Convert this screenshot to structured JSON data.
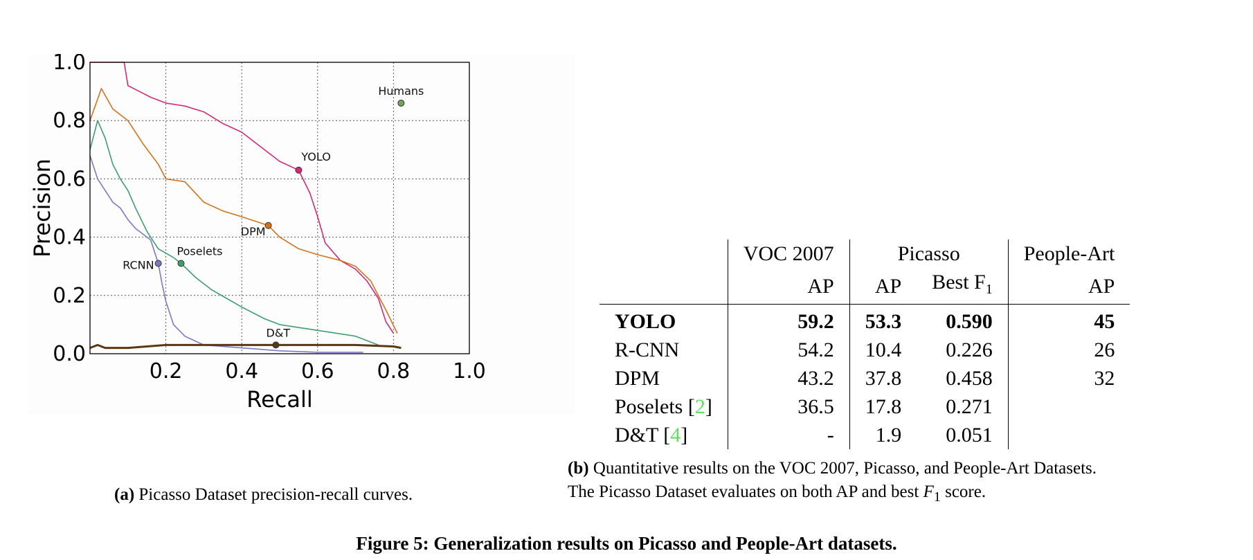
{
  "chart_data": {
    "type": "line",
    "title": "",
    "xlabel": "Recall",
    "ylabel": "Precision",
    "xlim": [
      0.0,
      1.0
    ],
    "ylim": [
      0.0,
      1.0
    ],
    "x_ticks": [
      "0.2",
      "0.4",
      "0.6",
      "0.8",
      "1.0"
    ],
    "y_ticks": [
      "0.0",
      "0.2",
      "0.4",
      "0.6",
      "0.8",
      "1.0"
    ],
    "grid": true,
    "series": [
      {
        "name": "YOLO",
        "color": "#d6287a",
        "points": [
          [
            0.0,
            1.0
          ],
          [
            0.05,
            1.0
          ],
          [
            0.09,
            1.0
          ],
          [
            0.1,
            0.92
          ],
          [
            0.13,
            0.9
          ],
          [
            0.16,
            0.88
          ],
          [
            0.2,
            0.86
          ],
          [
            0.25,
            0.85
          ],
          [
            0.3,
            0.83
          ],
          [
            0.35,
            0.79
          ],
          [
            0.4,
            0.76
          ],
          [
            0.45,
            0.71
          ],
          [
            0.5,
            0.66
          ],
          [
            0.55,
            0.63
          ],
          [
            0.58,
            0.55
          ],
          [
            0.6,
            0.47
          ],
          [
            0.62,
            0.38
          ],
          [
            0.66,
            0.32
          ],
          [
            0.7,
            0.29
          ],
          [
            0.73,
            0.25
          ],
          [
            0.76,
            0.19
          ],
          [
            0.78,
            0.11
          ],
          [
            0.8,
            0.07
          ]
        ],
        "marker": [
          0.55,
          0.63
        ]
      },
      {
        "name": "DPM",
        "color": "#d2731c",
        "points": [
          [
            0.0,
            0.8
          ],
          [
            0.03,
            0.91
          ],
          [
            0.06,
            0.84
          ],
          [
            0.1,
            0.8
          ],
          [
            0.14,
            0.72
          ],
          [
            0.18,
            0.65
          ],
          [
            0.2,
            0.6
          ],
          [
            0.25,
            0.59
          ],
          [
            0.3,
            0.52
          ],
          [
            0.35,
            0.49
          ],
          [
            0.4,
            0.47
          ],
          [
            0.47,
            0.44
          ],
          [
            0.5,
            0.4
          ],
          [
            0.55,
            0.36
          ],
          [
            0.6,
            0.34
          ],
          [
            0.66,
            0.32
          ],
          [
            0.7,
            0.3
          ],
          [
            0.74,
            0.25
          ],
          [
            0.78,
            0.15
          ],
          [
            0.81,
            0.07
          ]
        ],
        "marker": [
          0.47,
          0.44
        ]
      },
      {
        "name": "Poselets",
        "color": "#3f9e6d",
        "points": [
          [
            0.0,
            0.7
          ],
          [
            0.02,
            0.8
          ],
          [
            0.04,
            0.74
          ],
          [
            0.06,
            0.65
          ],
          [
            0.08,
            0.6
          ],
          [
            0.1,
            0.56
          ],
          [
            0.12,
            0.5
          ],
          [
            0.15,
            0.42
          ],
          [
            0.18,
            0.36
          ],
          [
            0.22,
            0.33
          ],
          [
            0.24,
            0.31
          ],
          [
            0.28,
            0.26
          ],
          [
            0.32,
            0.22
          ],
          [
            0.36,
            0.19
          ],
          [
            0.4,
            0.16
          ],
          [
            0.46,
            0.12
          ],
          [
            0.5,
            0.1
          ],
          [
            0.6,
            0.08
          ],
          [
            0.7,
            0.06
          ],
          [
            0.76,
            0.03
          ]
        ],
        "marker": [
          0.24,
          0.31
        ]
      },
      {
        "name": "RCNN",
        "color": "#7b78c8",
        "points": [
          [
            0.0,
            0.68
          ],
          [
            0.02,
            0.6
          ],
          [
            0.04,
            0.56
          ],
          [
            0.06,
            0.52
          ],
          [
            0.08,
            0.5
          ],
          [
            0.1,
            0.46
          ],
          [
            0.12,
            0.43
          ],
          [
            0.14,
            0.41
          ],
          [
            0.16,
            0.39
          ],
          [
            0.18,
            0.31
          ],
          [
            0.19,
            0.24
          ],
          [
            0.2,
            0.18
          ],
          [
            0.22,
            0.1
          ],
          [
            0.25,
            0.06
          ],
          [
            0.3,
            0.03
          ],
          [
            0.4,
            0.02
          ],
          [
            0.5,
            0.01
          ],
          [
            0.6,
            0.005
          ],
          [
            0.72,
            0.005
          ]
        ],
        "marker": [
          0.18,
          0.31
        ]
      },
      {
        "name": "D&T",
        "color": "#5a3814",
        "points": [
          [
            0.0,
            0.02
          ],
          [
            0.02,
            0.03
          ],
          [
            0.04,
            0.02
          ],
          [
            0.1,
            0.02
          ],
          [
            0.2,
            0.03
          ],
          [
            0.3,
            0.03
          ],
          [
            0.4,
            0.03
          ],
          [
            0.5,
            0.03
          ],
          [
            0.6,
            0.03
          ],
          [
            0.7,
            0.03
          ],
          [
            0.8,
            0.025
          ],
          [
            0.82,
            0.02
          ]
        ],
        "marker": [
          0.49,
          0.03
        ]
      }
    ],
    "points": [
      {
        "name": "Humans",
        "x": 0.82,
        "y": 0.86,
        "color": "#74a55a"
      }
    ]
  },
  "table": {
    "group_headers": [
      "",
      "VOC 2007",
      "Picasso",
      "People-Art"
    ],
    "sub_headers": [
      "",
      "AP",
      "AP",
      "Best F",
      "1",
      "AP"
    ],
    "rows": [
      {
        "name": "YOLO",
        "cite": "",
        "voc_ap": "59.2",
        "picasso_ap": "53.3",
        "picasso_f1": "0.590",
        "peopleart_ap": "45",
        "bold": true
      },
      {
        "name": "R-CNN",
        "cite": "",
        "voc_ap": "54.2",
        "picasso_ap": "10.4",
        "picasso_f1": "0.226",
        "peopleart_ap": "26",
        "bold": false
      },
      {
        "name": "DPM",
        "cite": "",
        "voc_ap": "43.2",
        "picasso_ap": "37.8",
        "picasso_f1": "0.458",
        "peopleart_ap": "32",
        "bold": false
      },
      {
        "name": "Poselets",
        "cite": "2",
        "voc_ap": "36.5",
        "picasso_ap": "17.8",
        "picasso_f1": "0.271",
        "peopleart_ap": "",
        "bold": false
      },
      {
        "name": "D&T",
        "cite": "4",
        "voc_ap": "-",
        "picasso_ap": "1.9",
        "picasso_f1": "0.051",
        "peopleart_ap": "",
        "bold": false
      }
    ]
  },
  "captions": {
    "a_label": "(a)",
    "a_text": "Picasso Dataset precision-recall curves.",
    "b_label": "(b)",
    "b_line1": "Quantitative results on the VOC 2007, Picasso, and People-Art Datasets.",
    "b_line2_pre": "The Picasso Dataset evaluates on both AP and best ",
    "b_f": "F",
    "b_sub": "1",
    "b_line2_post": " score.",
    "figure_label": "Figure 5:",
    "figure_text": "Generalization results on Picasso and People-Art datasets."
  }
}
